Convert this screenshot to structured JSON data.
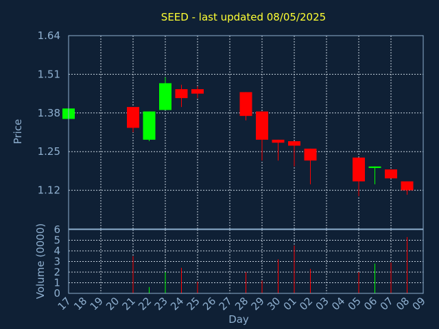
{
  "title": "SEED - last updated 08/05/2025",
  "colors": {
    "background": "#0f2035",
    "up": "#00ff00",
    "down": "#ff0000",
    "title": "#ffff33",
    "axis": "#8fb0d0"
  },
  "chart_data": [
    {
      "type": "candlestick",
      "ylabel": "Price",
      "ylim": [
        0.99,
        1.64
      ],
      "yticks": [
        "1.12",
        "1.25",
        "1.38",
        "1.51",
        "1.64"
      ],
      "grid": true,
      "x": [
        "17",
        "18",
        "19",
        "20",
        "21",
        "22",
        "23",
        "24",
        "25",
        "26",
        "27",
        "28",
        "29",
        "30",
        "01",
        "02",
        "03",
        "04",
        "05",
        "06",
        "07",
        "08",
        "09"
      ],
      "candles": [
        {
          "x": "17",
          "open": 1.36,
          "high": 1.395,
          "low": 1.36,
          "close": 1.395
        },
        {
          "x": "21",
          "open": 1.4,
          "high": 1.4,
          "low": 1.315,
          "close": 1.33
        },
        {
          "x": "22",
          "open": 1.29,
          "high": 1.385,
          "low": 1.285,
          "close": 1.385
        },
        {
          "x": "23",
          "open": 1.39,
          "high": 1.5,
          "low": 1.39,
          "close": 1.48
        },
        {
          "x": "24",
          "open": 1.46,
          "high": 1.475,
          "low": 1.4,
          "close": 1.43
        },
        {
          "x": "25",
          "open": 1.46,
          "high": 1.47,
          "low": 1.43,
          "close": 1.445
        },
        {
          "x": "28",
          "open": 1.45,
          "high": 1.45,
          "low": 1.355,
          "close": 1.37
        },
        {
          "x": "29",
          "open": 1.385,
          "high": 1.385,
          "low": 1.22,
          "close": 1.29
        },
        {
          "x": "30",
          "open": 1.29,
          "high": 1.29,
          "low": 1.22,
          "close": 1.28
        },
        {
          "x": "01",
          "open": 1.285,
          "high": 1.285,
          "low": 1.2,
          "close": 1.27
        },
        {
          "x": "02",
          "open": 1.26,
          "high": 1.26,
          "low": 1.14,
          "close": 1.22
        },
        {
          "x": "05",
          "open": 1.23,
          "high": 1.23,
          "low": 1.1,
          "close": 1.15
        },
        {
          "x": "06",
          "open": 1.195,
          "high": 1.2,
          "low": 1.14,
          "close": 1.2
        },
        {
          "x": "07",
          "open": 1.19,
          "high": 1.19,
          "low": 1.16,
          "close": 1.16
        },
        {
          "x": "08",
          "open": 1.15,
          "high": 1.15,
          "low": 1.105,
          "close": 1.12
        }
      ]
    },
    {
      "type": "bar",
      "ylabel": "Volume (0000)",
      "xlabel": "Day",
      "ylim": [
        0,
        6
      ],
      "yticks": [
        "0",
        "1",
        "2",
        "3",
        "4",
        "5",
        "6"
      ],
      "grid": true,
      "categories": [
        "17",
        "18",
        "19",
        "20",
        "21",
        "22",
        "23",
        "24",
        "25",
        "26",
        "27",
        "28",
        "29",
        "30",
        "01",
        "02",
        "03",
        "04",
        "05",
        "06",
        "07",
        "08",
        "09"
      ],
      "bars": [
        {
          "x": "21",
          "value": 3.5,
          "dir": "down"
        },
        {
          "x": "22",
          "value": 0.6,
          "dir": "up"
        },
        {
          "x": "23",
          "value": 2.0,
          "dir": "up"
        },
        {
          "x": "24",
          "value": 2.4,
          "dir": "down"
        },
        {
          "x": "25",
          "value": 1.1,
          "dir": "down"
        },
        {
          "x": "28",
          "value": 2.0,
          "dir": "down"
        },
        {
          "x": "29",
          "value": 1.2,
          "dir": "down"
        },
        {
          "x": "30",
          "value": 3.2,
          "dir": "down"
        },
        {
          "x": "01",
          "value": 4.5,
          "dir": "down"
        },
        {
          "x": "02",
          "value": 2.3,
          "dir": "down"
        },
        {
          "x": "05",
          "value": 2.0,
          "dir": "down"
        },
        {
          "x": "06",
          "value": 2.8,
          "dir": "up"
        },
        {
          "x": "07",
          "value": 2.9,
          "dir": "down"
        },
        {
          "x": "08",
          "value": 5.3,
          "dir": "down"
        }
      ]
    }
  ]
}
